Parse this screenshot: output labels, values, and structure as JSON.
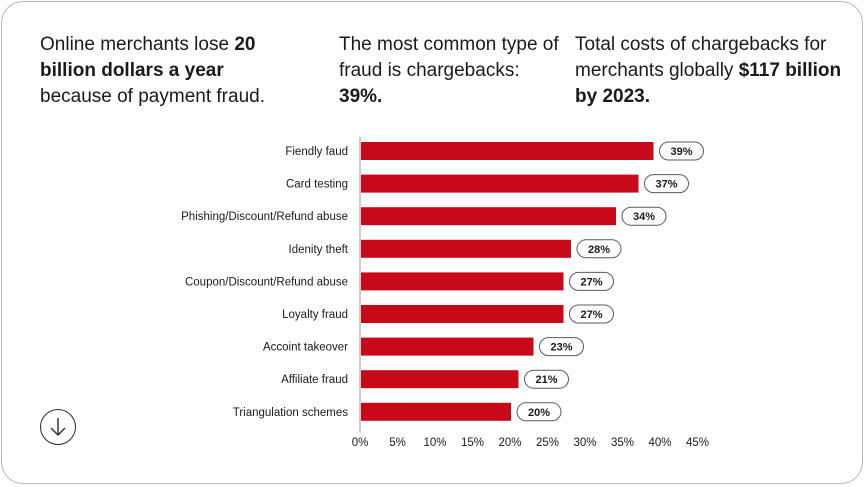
{
  "stats": [
    {
      "pre": "Online merchants lose ",
      "bold": "20 billion dollars a year",
      "post": " because of payment fraud.",
      "bold_first": false
    },
    {
      "pre": "The most common type of fraud is chargebacks: ",
      "bold": "39%.",
      "post": "",
      "bold_first": false
    },
    {
      "pre": "Total costs of chargebacks for merchants globally ",
      "bold": "$117 billion by 2023.",
      "post": "",
      "bold_first": false
    }
  ],
  "colors": {
    "bar": "#c8091a",
    "text": "#1a1a1a",
    "border": "#b9b9b9"
  },
  "icons": {
    "down_button": "arrow-down-icon"
  },
  "chart_data": {
    "type": "bar",
    "orientation": "horizontal",
    "categories": [
      "Fiendly faud",
      "Card testing",
      "Phishing/Discount/Refund abuse",
      "Idenity theft",
      "Coupon/Discount/Refund abuse",
      "Loyalty fraud",
      "Accoint takeover",
      "Affiliate fraud",
      "Triangulation schemes"
    ],
    "values": [
      39,
      37,
      34,
      28,
      27,
      27,
      23,
      21,
      20
    ],
    "value_labels": [
      "39%",
      "37%",
      "34%",
      "28%",
      "27%",
      "27%",
      "23%",
      "21%",
      "20%"
    ],
    "x_ticks": [
      0,
      5,
      10,
      15,
      20,
      25,
      30,
      35,
      40,
      45
    ],
    "x_tick_labels": [
      "0%",
      "5%",
      "10%",
      "15%",
      "20%",
      "25%",
      "30%",
      "35%",
      "40%",
      "45%"
    ],
    "xlim": [
      0,
      45
    ],
    "title": "",
    "xlabel": "",
    "ylabel": "",
    "grid": false,
    "legend": "none"
  }
}
